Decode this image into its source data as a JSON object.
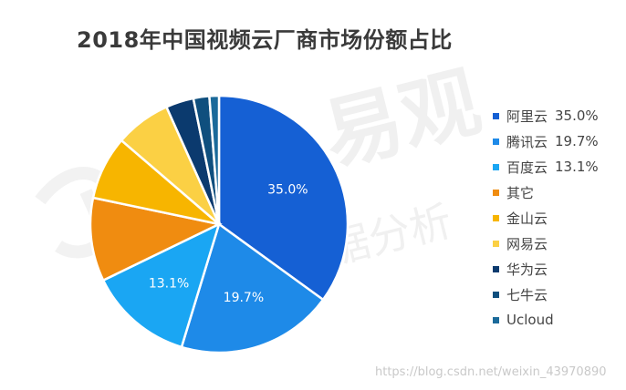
{
  "title": "2018年中国视频云厂商市场份额占比",
  "watermark": {
    "brand": "易观",
    "sub": "分析",
    "url": "https://blog.csdn.net/weixin_43970890"
  },
  "chart_data": {
    "type": "pie",
    "title": "2018年中国视频云厂商市场份额占比",
    "start_angle_deg": 0,
    "direction": "clockwise",
    "legend_position": "right",
    "slices": [
      {
        "label": "阿里云",
        "value": 35.0,
        "value_text": "35.0%",
        "color": "#1560d4",
        "show_label": true
      },
      {
        "label": "腾讯云",
        "value": 19.7,
        "value_text": "19.7%",
        "color": "#1e8ae8",
        "show_label": true
      },
      {
        "label": "百度云",
        "value": 13.1,
        "value_text": "13.1%",
        "color": "#1aa6f3",
        "show_label": true
      },
      {
        "label": "其它",
        "value": 10.5,
        "value_text": "",
        "color": "#f08c10",
        "show_label": false
      },
      {
        "label": "金山云",
        "value": 8.0,
        "value_text": "",
        "color": "#f7b500",
        "show_label": false
      },
      {
        "label": "网易云",
        "value": 7.0,
        "value_text": "",
        "color": "#fbd044",
        "show_label": false
      },
      {
        "label": "华为云",
        "value": 3.5,
        "value_text": "",
        "color": "#0b3a6e",
        "show_label": false
      },
      {
        "label": "七牛云",
        "value": 2.0,
        "value_text": "",
        "color": "#0f4f7e",
        "show_label": false
      },
      {
        "label": "Ucloud",
        "value": 1.2,
        "value_text": "",
        "color": "#1b6a9a",
        "show_label": false
      }
    ]
  }
}
